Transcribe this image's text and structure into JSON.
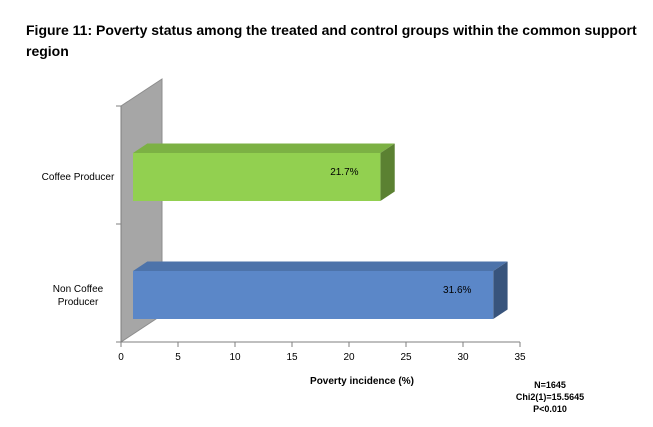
{
  "figure": {
    "title": "Figure 11: Poverty status among the treated and control groups within the common support region"
  },
  "chart_data": {
    "type": "bar",
    "orientation": "horizontal",
    "style": "3d",
    "categories": [
      "Coffee Producer",
      "Non Coffee Producer"
    ],
    "series": [
      {
        "values": [
          21.7,
          31.6
        ],
        "data_labels": [
          "21.7%",
          "31.6%"
        ],
        "colors": [
          "#92D050",
          "#5B87C8"
        ]
      }
    ],
    "xlabel": "Poverty incidence (%)",
    "ylabel": "",
    "xlim": [
      0,
      35
    ],
    "xticks": [
      0,
      5,
      10,
      15,
      20,
      25,
      30,
      35
    ],
    "grid": false,
    "legend": "none",
    "wall_color": "#A6A6A6"
  },
  "stats": {
    "n": "N=1645",
    "chi2": "Chi2(1)=15.5645",
    "p": "P<0.010"
  }
}
